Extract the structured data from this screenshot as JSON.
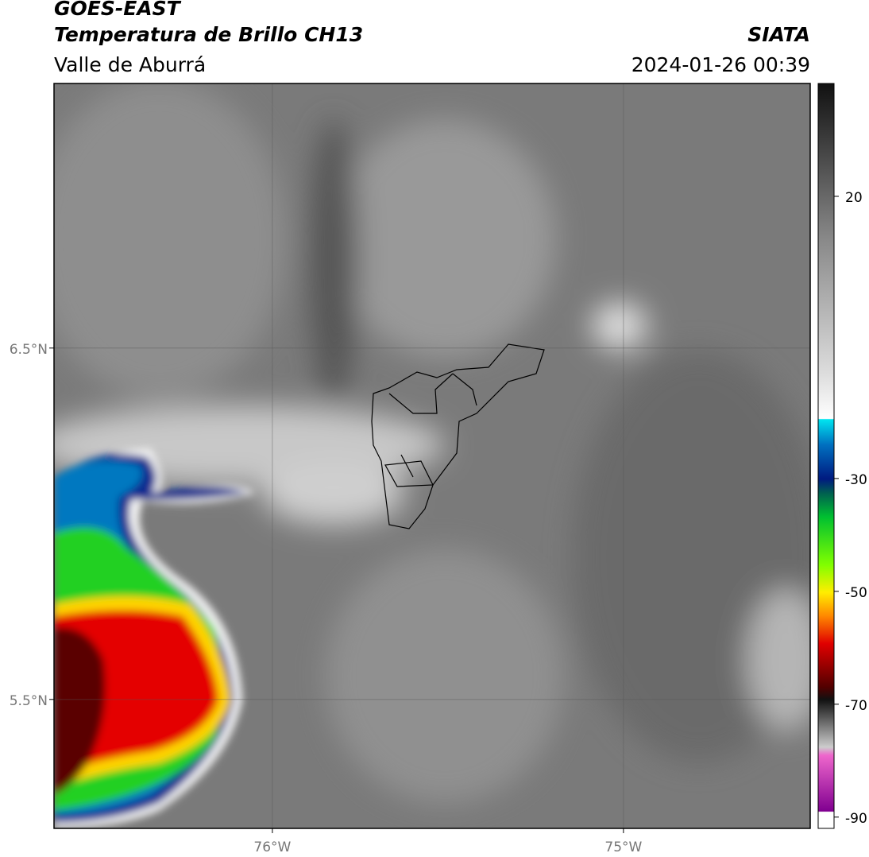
{
  "header": {
    "satellite": "GOES-EAST",
    "product": "Temperatura de Brillo CH13",
    "region": "Valle de Aburrá",
    "agency": "SIATA",
    "datetime": "2024-01-26 00:39"
  },
  "map": {
    "lon_range": [
      -76.622,
      -74.468
    ],
    "lat_range": [
      5.133,
      7.253
    ],
    "lat_ticks": [
      {
        "value": 6.5,
        "label": "6.5°N"
      },
      {
        "value": 5.5,
        "label": "5.5°N"
      }
    ],
    "lon_ticks": [
      {
        "value": -76,
        "label": "76°W"
      },
      {
        "value": -75,
        "label": "75°W"
      }
    ]
  },
  "colorbar": {
    "lim": [
      -92,
      40
    ],
    "ticks": [
      20,
      -30,
      -50,
      -70,
      -90
    ]
  }
}
